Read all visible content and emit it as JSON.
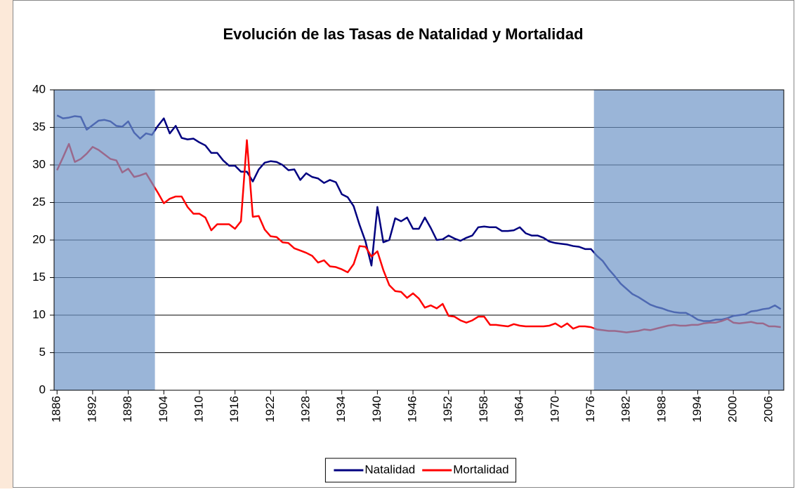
{
  "chart_data": {
    "type": "line",
    "title": "Evolución de las Tasas de Natalidad y Mortalidad",
    "x": [
      1886,
      1887,
      1888,
      1889,
      1890,
      1891,
      1892,
      1893,
      1894,
      1895,
      1896,
      1897,
      1898,
      1899,
      1900,
      1901,
      1902,
      1903,
      1904,
      1905,
      1906,
      1907,
      1908,
      1909,
      1910,
      1911,
      1912,
      1913,
      1914,
      1915,
      1916,
      1917,
      1918,
      1919,
      1920,
      1921,
      1922,
      1923,
      1924,
      1925,
      1926,
      1927,
      1928,
      1929,
      1930,
      1931,
      1932,
      1933,
      1934,
      1935,
      1936,
      1937,
      1938,
      1939,
      1940,
      1941,
      1942,
      1943,
      1944,
      1945,
      1946,
      1947,
      1948,
      1949,
      1950,
      1951,
      1952,
      1953,
      1954,
      1955,
      1956,
      1957,
      1958,
      1959,
      1960,
      1961,
      1962,
      1963,
      1964,
      1965,
      1966,
      1967,
      1968,
      1969,
      1970,
      1971,
      1972,
      1973,
      1974,
      1975,
      1976,
      1977,
      1978,
      1979,
      1980,
      1981,
      1982,
      1983,
      1984,
      1985,
      1986,
      1987,
      1988,
      1989,
      1990,
      1991,
      1992,
      1993,
      1994,
      1995,
      1996,
      1997,
      1998,
      1999,
      2000,
      2001,
      2002,
      2003,
      2004,
      2005,
      2006,
      2007,
      2008
    ],
    "series": [
      {
        "name": "Natalidad",
        "color": "#000080",
        "values": [
          36.6,
          36.2,
          36.3,
          36.5,
          36.4,
          34.7,
          35.3,
          35.9,
          36.0,
          35.8,
          35.2,
          35.1,
          35.8,
          34.3,
          33.5,
          34.2,
          34.0,
          35.2,
          36.2,
          34.2,
          35.2,
          33.6,
          33.4,
          33.5,
          33.0,
          32.6,
          31.6,
          31.6,
          30.6,
          29.9,
          29.9,
          29.1,
          29.1,
          27.8,
          29.4,
          30.3,
          30.5,
          30.4,
          30.0,
          29.3,
          29.4,
          28.0,
          28.9,
          28.4,
          28.2,
          27.6,
          28.0,
          27.7,
          26.1,
          25.7,
          24.5,
          22.0,
          19.8,
          16.6,
          24.4,
          19.7,
          20.0,
          22.9,
          22.5,
          23.0,
          21.5,
          21.5,
          23.0,
          21.6,
          20.0,
          20.1,
          20.6,
          20.2,
          19.9,
          20.3,
          20.6,
          21.7,
          21.8,
          21.7,
          21.7,
          21.2,
          21.2,
          21.3,
          21.7,
          20.9,
          20.6,
          20.6,
          20.3,
          19.8,
          19.6,
          19.5,
          19.4,
          19.2,
          19.1,
          18.8,
          18.8,
          17.9,
          17.2,
          16.1,
          15.2,
          14.2,
          13.5,
          12.8,
          12.4,
          11.9,
          11.4,
          11.1,
          10.9,
          10.6,
          10.4,
          10.3,
          10.3,
          9.9,
          9.4,
          9.2,
          9.2,
          9.4,
          9.4,
          9.6,
          9.9,
          10.0,
          10.1,
          10.5,
          10.6,
          10.8,
          10.9,
          11.3,
          10.8
        ]
      },
      {
        "name": "Mortalidad",
        "color": "#ff0000",
        "values": [
          29.3,
          31.0,
          32.8,
          30.4,
          30.8,
          31.5,
          32.4,
          32.0,
          31.4,
          30.8,
          30.6,
          29.0,
          29.5,
          28.4,
          28.6,
          28.9,
          27.6,
          26.3,
          24.9,
          25.5,
          25.8,
          25.8,
          24.4,
          23.5,
          23.5,
          23.0,
          21.3,
          22.1,
          22.1,
          22.1,
          21.5,
          22.5,
          33.3,
          23.1,
          23.2,
          21.4,
          20.5,
          20.4,
          19.7,
          19.6,
          18.9,
          18.6,
          18.3,
          17.9,
          17.0,
          17.3,
          16.5,
          16.4,
          16.1,
          15.7,
          16.8,
          19.2,
          19.1,
          17.8,
          18.5,
          16.0,
          14.0,
          13.2,
          13.1,
          12.3,
          12.9,
          12.2,
          11.0,
          11.3,
          10.9,
          11.5,
          9.9,
          9.8,
          9.3,
          9.0,
          9.3,
          9.8,
          9.8,
          8.7,
          8.7,
          8.6,
          8.5,
          8.8,
          8.6,
          8.5,
          8.5,
          8.5,
          8.5,
          8.6,
          8.9,
          8.4,
          8.9,
          8.2,
          8.5,
          8.5,
          8.4,
          8.1,
          8.0,
          7.9,
          7.9,
          7.8,
          7.7,
          7.8,
          7.9,
          8.1,
          8.0,
          8.2,
          8.4,
          8.6,
          8.7,
          8.6,
          8.6,
          8.7,
          8.7,
          8.9,
          9.0,
          9.0,
          9.2,
          9.5,
          9.0,
          8.9,
          9.0,
          9.1,
          8.9,
          8.9,
          8.5,
          8.5,
          8.4
        ]
      }
    ],
    "bands": [
      [
        1885.5,
        1902.5
      ],
      [
        1976.5,
        2008.5
      ]
    ],
    "band_color": "#6f95c8",
    "xlim": [
      1885.5,
      2008.5
    ],
    "xticks": [
      1886,
      1892,
      1898,
      1904,
      1910,
      1916,
      1922,
      1928,
      1934,
      1940,
      1946,
      1952,
      1958,
      1964,
      1970,
      1976,
      1982,
      1988,
      1994,
      2000,
      2006
    ],
    "ylim": [
      0,
      40
    ],
    "yticks": [
      0,
      5,
      10,
      15,
      20,
      25,
      30,
      35,
      40
    ],
    "grid": true,
    "legend": "bottom"
  }
}
